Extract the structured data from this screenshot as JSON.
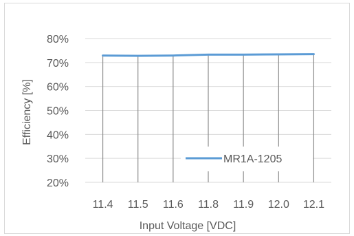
{
  "chart_data": {
    "type": "line",
    "categories": [
      "11.4",
      "11.5",
      "11.6",
      "11.8",
      "11.9",
      "12.0",
      "12.1"
    ],
    "series": [
      {
        "name": "MR1A-1205",
        "values": [
          72.9,
          72.8,
          72.9,
          73.3,
          73.3,
          73.4,
          73.5
        ],
        "color": "#5b9bd5"
      }
    ],
    "xlabel": "Input Voltage [VDC]",
    "ylabel": "Efficiency [%]",
    "ylim": [
      20,
      80
    ],
    "yticks": [
      "20%",
      "30%",
      "40%",
      "50%",
      "60%",
      "70%",
      "80%"
    ],
    "grid": true,
    "legend_position": "bottom-right"
  }
}
